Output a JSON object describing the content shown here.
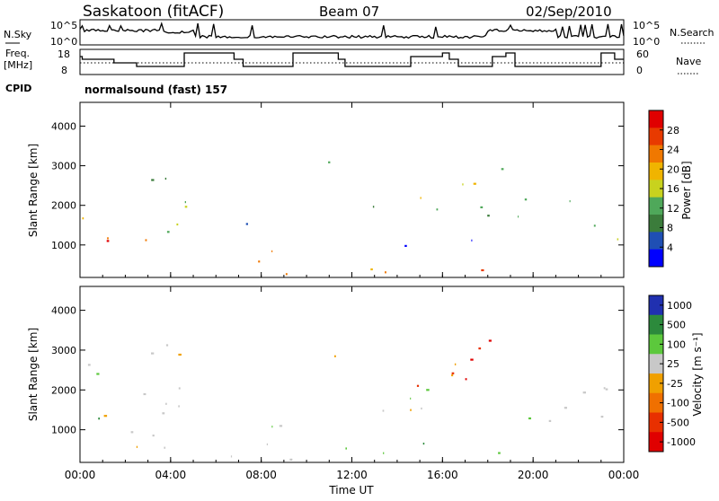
{
  "header": {
    "station": "Saskatoon (fitACF)",
    "beam": "Beam 07",
    "date": "02/Sep/2010"
  },
  "noise_panel": {
    "left_label": "N.Sky",
    "right_label": "N.Search",
    "left_ticks": [
      "10^5",
      "10^0"
    ],
    "right_ticks": [
      "10^5",
      "10^0"
    ]
  },
  "freq_panel": {
    "left_label_1": "Freq.",
    "left_label_2": "[MHz]",
    "left_ticks": [
      "18",
      "8"
    ],
    "right_ticks": [
      "60",
      "0"
    ],
    "right_label": "Nave"
  },
  "cpid": {
    "label": "CPID",
    "value": "normalsound (fast) 157"
  },
  "colors": {
    "power": [
      "#0000ff",
      "#1f4fb4",
      "#3b7c3b",
      "#4fa85a",
      "#c8d21e",
      "#f0b400",
      "#f07800",
      "#e83a00",
      "#e00000"
    ],
    "velocity": [
      "#2030b0",
      "#2c8a3c",
      "#5cc83c",
      "#c8c8c8",
      "#f0a000",
      "#f07000",
      "#e83000",
      "#e00000"
    ]
  },
  "chart_data": [
    {
      "type": "heatmap",
      "name": "power",
      "ylabel": "Slant Range [km]",
      "yticks": [
        "1000",
        "2000",
        "3000",
        "4000"
      ],
      "ylim": [
        180,
        4600
      ],
      "xlim_hours": [
        0,
        24
      ],
      "colorbar_label": "Power [dB]",
      "colorbar_ticks": [
        "4",
        "8",
        "12",
        "16",
        "20",
        "24",
        "28"
      ],
      "range": [
        0,
        32
      ],
      "blobs": [
        {
          "t0": 0.1,
          "t1": 1.6,
          "r0": 500,
          "r1": 1800,
          "v": 22
        },
        {
          "t0": 0.5,
          "t1": 1.4,
          "r0": 800,
          "r1": 1400,
          "v": 28
        },
        {
          "t0": 1.4,
          "t1": 4.9,
          "r0": 1300,
          "r1": 2300,
          "v": 14
        },
        {
          "t0": 1.6,
          "t1": 3.0,
          "r0": 600,
          "r1": 1200,
          "v": 26
        },
        {
          "t0": 2.5,
          "t1": 4.0,
          "r0": 2400,
          "r1": 3300,
          "v": 10
        },
        {
          "t0": 5.9,
          "t1": 9.4,
          "r0": 250,
          "r1": 950,
          "v": 26
        },
        {
          "t0": 6.0,
          "t1": 8.0,
          "r0": 1000,
          "r1": 1600,
          "v": 8
        },
        {
          "t0": 10.0,
          "t1": 18.5,
          "r0": 250,
          "r1": 550,
          "v": 24
        },
        {
          "t0": 10.0,
          "t1": 11.5,
          "r0": 2800,
          "r1": 3400,
          "v": 12
        },
        {
          "t0": 12.5,
          "t1": 18.0,
          "r0": 1500,
          "r1": 2700,
          "v": 14
        },
        {
          "t0": 14.0,
          "t1": 18.3,
          "r0": 1000,
          "r1": 1500,
          "v": 6
        },
        {
          "t0": 18.0,
          "t1": 18.8,
          "r0": 2500,
          "r1": 3400,
          "v": 14
        },
        {
          "t0": 18.8,
          "t1": 23.2,
          "r0": 1300,
          "r1": 2200,
          "v": 10
        },
        {
          "t0": 20.0,
          "t1": 22.0,
          "r0": 250,
          "r1": 450,
          "v": 30
        },
        {
          "t0": 23.6,
          "t1": 24.0,
          "r0": 700,
          "r1": 2800,
          "v": 16
        }
      ]
    },
    {
      "type": "heatmap",
      "name": "velocity",
      "ylabel": "Slant Range [km]",
      "yticks": [
        "1000",
        "2000",
        "3000",
        "4000"
      ],
      "ylim": [
        180,
        4600
      ],
      "xlabel": "Time UT",
      "xticks": [
        "00:00",
        "04:00",
        "08:00",
        "12:00",
        "16:00",
        "20:00",
        "00:00"
      ],
      "xlim_hours": [
        0,
        24
      ],
      "colorbar_label": "Velocity [m s⁻¹]",
      "colorbar_ticks": [
        "1000",
        "500",
        "100",
        "25",
        "-25",
        "-100",
        "-500",
        "-1000"
      ],
      "blobs": [
        {
          "t0": 0.1,
          "t1": 4.9,
          "r0": 500,
          "r1": 3300,
          "c": 3
        },
        {
          "t0": 0.5,
          "t1": 2.0,
          "r0": 800,
          "r1": 1500,
          "c": 1
        },
        {
          "t0": 6.0,
          "t1": 9.4,
          "r0": 250,
          "r1": 1200,
          "c": 3
        },
        {
          "t0": 6.5,
          "t1": 8.5,
          "r0": 300,
          "r1": 800,
          "c": 4
        },
        {
          "t0": 10.0,
          "t1": 18.5,
          "r0": 250,
          "r1": 700,
          "c": 2
        },
        {
          "t0": 12.5,
          "t1": 17.5,
          "r0": 1400,
          "r1": 2700,
          "c": 3
        },
        {
          "t0": 14.0,
          "t1": 16.5,
          "r0": 1800,
          "r1": 2600,
          "c": 6
        },
        {
          "t0": 16.0,
          "t1": 18.8,
          "r0": 2200,
          "r1": 3400,
          "c": 6
        },
        {
          "t0": 18.8,
          "t1": 23.6,
          "r0": 1000,
          "r1": 2300,
          "c": 3
        },
        {
          "t0": 10.0,
          "t1": 11.4,
          "r0": 2800,
          "r1": 3400,
          "c": 3
        }
      ]
    }
  ]
}
